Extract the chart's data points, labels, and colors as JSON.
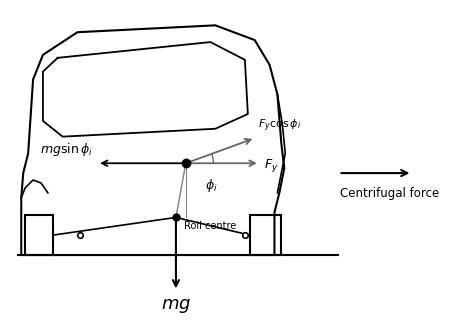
{
  "bg_color": "#ffffff",
  "line_color": "#000000",
  "arrow_color": "#666666",
  "centrifugal_text": "Centrifugal force",
  "roll_centre_text": "Roll centre",
  "mg_text": "$mg$",
  "mg_sin_text": "$mg \\sin \\phi_i$",
  "Fy_cos_text": "$F_y \\cos \\phi_i$",
  "Fy_text": "$F_y$",
  "phi_text": "$\\phi_i$",
  "figsize": [
    4.74,
    3.2
  ],
  "dpi": 100
}
